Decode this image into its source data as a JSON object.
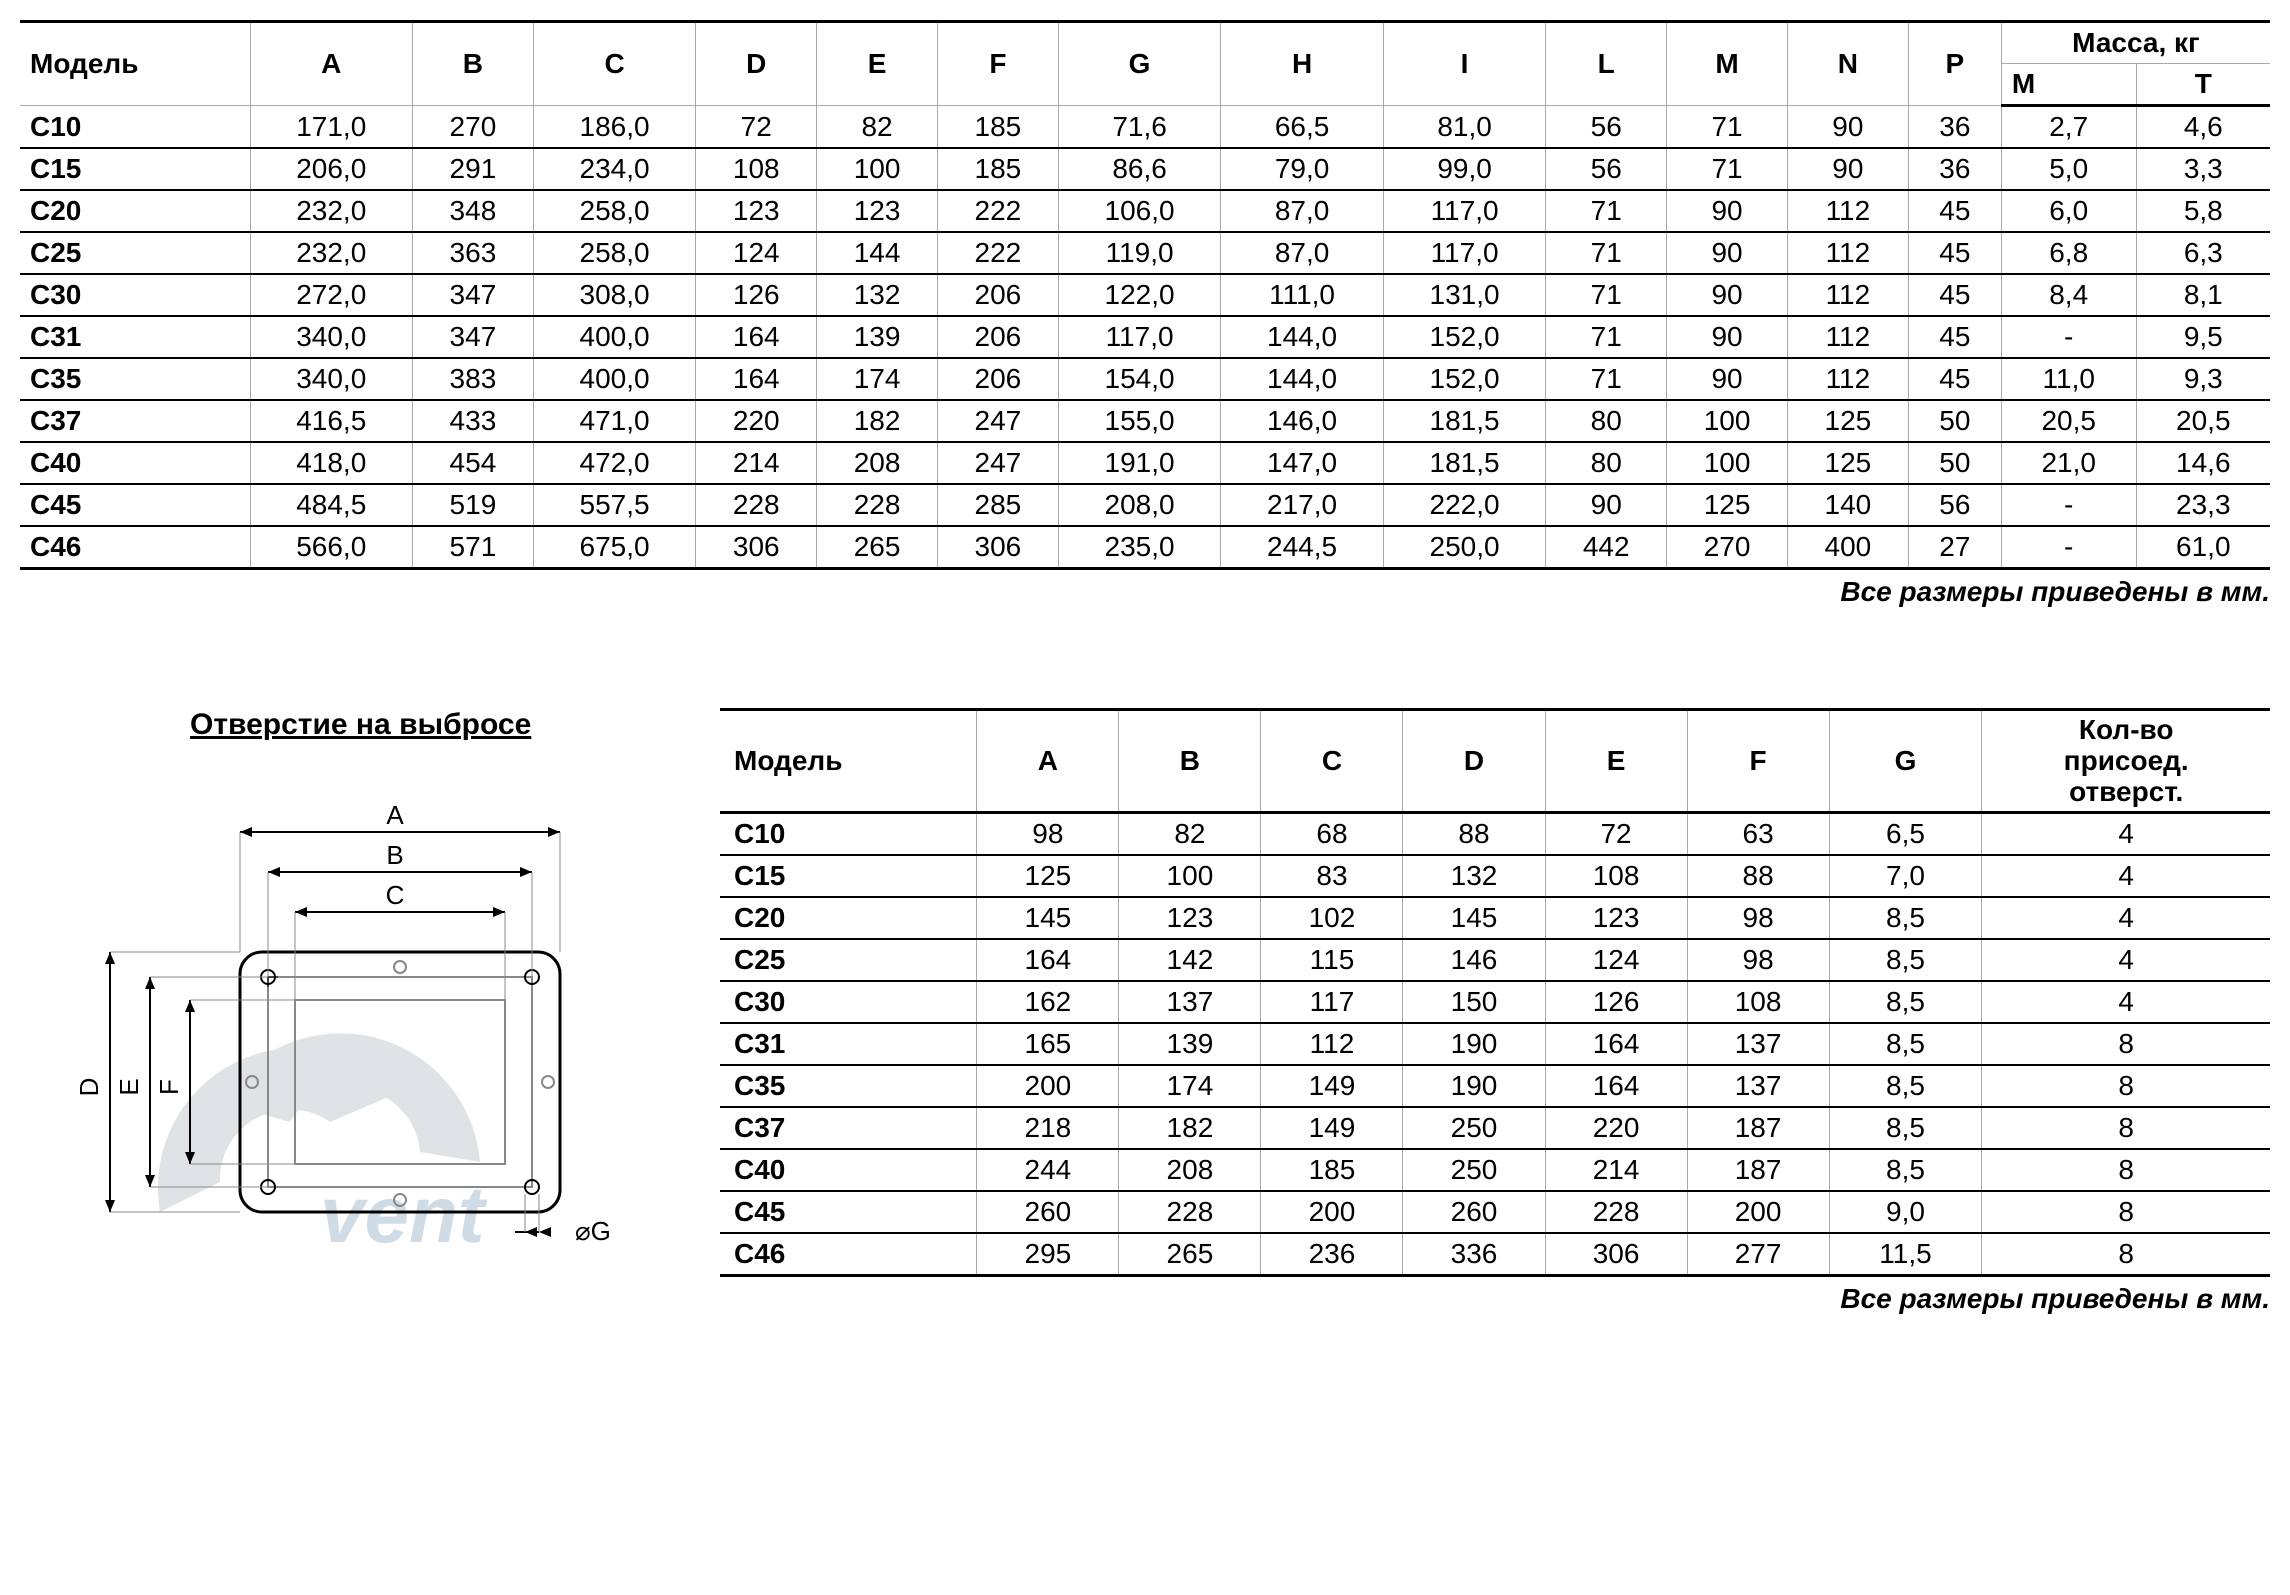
{
  "table1": {
    "columns": [
      "Модель",
      "A",
      "B",
      "C",
      "D",
      "E",
      "F",
      "G",
      "H",
      "I",
      "L",
      "M",
      "N",
      "P"
    ],
    "mass_header": "Масса, кг",
    "mass_sub": [
      "M",
      "T"
    ],
    "rows": [
      [
        "C10",
        "171,0",
        "270",
        "186,0",
        "72",
        "82",
        "185",
        "71,6",
        "66,5",
        "81,0",
        "56",
        "71",
        "90",
        "36",
        "2,7",
        "4,6"
      ],
      [
        "C15",
        "206,0",
        "291",
        "234,0",
        "108",
        "100",
        "185",
        "86,6",
        "79,0",
        "99,0",
        "56",
        "71",
        "90",
        "36",
        "5,0",
        "3,3"
      ],
      [
        "C20",
        "232,0",
        "348",
        "258,0",
        "123",
        "123",
        "222",
        "106,0",
        "87,0",
        "117,0",
        "71",
        "90",
        "112",
        "45",
        "6,0",
        "5,8"
      ],
      [
        "C25",
        "232,0",
        "363",
        "258,0",
        "124",
        "144",
        "222",
        "119,0",
        "87,0",
        "117,0",
        "71",
        "90",
        "112",
        "45",
        "6,8",
        "6,3"
      ],
      [
        "C30",
        "272,0",
        "347",
        "308,0",
        "126",
        "132",
        "206",
        "122,0",
        "111,0",
        "131,0",
        "71",
        "90",
        "112",
        "45",
        "8,4",
        "8,1"
      ],
      [
        "C31",
        "340,0",
        "347",
        "400,0",
        "164",
        "139",
        "206",
        "117,0",
        "144,0",
        "152,0",
        "71",
        "90",
        "112",
        "45",
        "-",
        "9,5"
      ],
      [
        "C35",
        "340,0",
        "383",
        "400,0",
        "164",
        "174",
        "206",
        "154,0",
        "144,0",
        "152,0",
        "71",
        "90",
        "112",
        "45",
        "11,0",
        "9,3"
      ],
      [
        "C37",
        "416,5",
        "433",
        "471,0",
        "220",
        "182",
        "247",
        "155,0",
        "146,0",
        "181,5",
        "80",
        "100",
        "125",
        "50",
        "20,5",
        "20,5"
      ],
      [
        "C40",
        "418,0",
        "454",
        "472,0",
        "214",
        "208",
        "247",
        "191,0",
        "147,0",
        "181,5",
        "80",
        "100",
        "125",
        "50",
        "21,0",
        "14,6"
      ],
      [
        "C45",
        "484,5",
        "519",
        "557,5",
        "228",
        "228",
        "285",
        "208,0",
        "217,0",
        "222,0",
        "90",
        "125",
        "140",
        "56",
        "-",
        "23,3"
      ],
      [
        "C46",
        "566,0",
        "571",
        "675,0",
        "306",
        "265",
        "306",
        "235,0",
        "244,5",
        "250,0",
        "442",
        "270",
        "400",
        "27",
        "-",
        "61,0"
      ]
    ]
  },
  "footnote": "Все размеры приведены в мм.",
  "diagram_title": "Отверстие на выбросе",
  "diagram_labels": {
    "A": "A",
    "B": "B",
    "C": "C",
    "D": "D",
    "E": "E",
    "F": "F",
    "G": "⌀G"
  },
  "table2": {
    "columns": [
      "Модель",
      "A",
      "B",
      "C",
      "D",
      "E",
      "F",
      "G",
      "Кол-во присоед. отверст."
    ],
    "rows": [
      [
        "C10",
        "98",
        "82",
        "68",
        "88",
        "72",
        "63",
        "6,5",
        "4"
      ],
      [
        "C15",
        "125",
        "100",
        "83",
        "132",
        "108",
        "88",
        "7,0",
        "4"
      ],
      [
        "C20",
        "145",
        "123",
        "102",
        "145",
        "123",
        "98",
        "8,5",
        "4"
      ],
      [
        "C25",
        "164",
        "142",
        "115",
        "146",
        "124",
        "98",
        "8,5",
        "4"
      ],
      [
        "C30",
        "162",
        "137",
        "117",
        "150",
        "126",
        "108",
        "8,5",
        "4"
      ],
      [
        "C31",
        "165",
        "139",
        "112",
        "190",
        "164",
        "137",
        "8,5",
        "8"
      ],
      [
        "C35",
        "200",
        "174",
        "149",
        "190",
        "164",
        "137",
        "8,5",
        "8"
      ],
      [
        "C37",
        "218",
        "182",
        "149",
        "250",
        "220",
        "187",
        "8,5",
        "8"
      ],
      [
        "C40",
        "244",
        "208",
        "185",
        "250",
        "214",
        "187",
        "8,5",
        "8"
      ],
      [
        "C45",
        "260",
        "228",
        "200",
        "260",
        "228",
        "200",
        "9,0",
        "8"
      ],
      [
        "C46",
        "295",
        "265",
        "236",
        "336",
        "306",
        "277",
        "11,5",
        "8"
      ]
    ]
  }
}
